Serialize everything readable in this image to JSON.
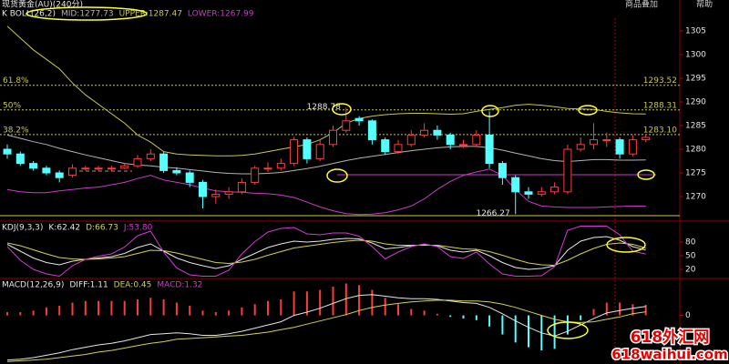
{
  "ui": {
    "title": "现货黄金(AU)(240分)",
    "buttons": [
      "商品叠加",
      "帮助"
    ],
    "watermark": [
      "618外汇网",
      "618waihui.com"
    ]
  },
  "chart_data": [
    {
      "type": "candlestick",
      "title": "K  BOLL(26,2)",
      "open": [
        1280,
        1279,
        1277,
        1276,
        1275,
        1274.5,
        1276,
        1276,
        1276,
        1276,
        1276.5,
        1278,
        1279,
        1275.5,
        1275,
        1273,
        1270,
        1270.5,
        1271,
        1273,
        1276,
        1276,
        1277,
        1282,
        1278,
        1281,
        1284,
        1286.5,
        1286,
        1282,
        1279.5,
        1281,
        1283,
        1284,
        1283,
        1281,
        1281,
        1283,
        1277,
        1274,
        1271,
        1270.5,
        1271,
        1271,
        1280,
        1281,
        1282,
        1282,
        1279,
        1282
      ],
      "high": [
        1281,
        1279.5,
        1277.5,
        1276.5,
        1275.5,
        1276.8,
        1276.5,
        1276.5,
        1276.5,
        1277,
        1278.8,
        1280,
        1279.5,
        1276.2,
        1275.5,
        1273.5,
        1271.5,
        1272,
        1273.8,
        1276.5,
        1277.2,
        1278,
        1282.6,
        1282.5,
        1282,
        1285,
        1288.78,
        1287,
        1286.3,
        1282.5,
        1282,
        1284,
        1285.5,
        1285,
        1283.5,
        1282,
        1284,
        1288,
        1277.5,
        1274.5,
        1272,
        1272,
        1273,
        1281,
        1282.5,
        1285.5,
        1283.5,
        1282.5,
        1283,
        1283.2
      ],
      "low": [
        1278,
        1276.5,
        1275.5,
        1274.5,
        1273,
        1274,
        1275.5,
        1275.5,
        1275.5,
        1275.8,
        1276,
        1277.5,
        1275,
        1274.5,
        1272,
        1267.5,
        1268.5,
        1269.5,
        1270.5,
        1272.5,
        1275.2,
        1275.5,
        1276.5,
        1277,
        1277.5,
        1280.5,
        1283.5,
        1285,
        1281,
        1278.8,
        1279,
        1280.5,
        1282.5,
        1282,
        1280,
        1280.3,
        1280.5,
        1276,
        1272.5,
        1266.27,
        1269.5,
        1270,
        1270.5,
        1270.5,
        1279.5,
        1280,
        1280.5,
        1278,
        1278.5,
        1281.5
      ],
      "close": [
        1279,
        1277,
        1276,
        1275,
        1274,
        1276,
        1276,
        1276,
        1276,
        1276.5,
        1278,
        1279,
        1275.5,
        1275,
        1273,
        1270,
        1270.5,
        1271,
        1273,
        1276,
        1276,
        1277,
        1282,
        1278,
        1281,
        1284,
        1286,
        1286,
        1282,
        1279.5,
        1281,
        1283,
        1284,
        1283,
        1281,
        1281,
        1283,
        1277,
        1274,
        1271,
        1270.5,
        1271,
        1272,
        1280,
        1281,
        1282,
        1282,
        1279,
        1282,
        1282.5
      ],
      "up_color": "#ff3c3c",
      "down_color": "#54ffff",
      "series": [
        {
          "name": "MID:1277.73",
          "color": "#b4b4b4",
          "values": [
            1283,
            1282.3,
            1281.6,
            1281,
            1280.2,
            1279.5,
            1278.8,
            1278.2,
            1277.6,
            1277,
            1276.7,
            1276.5,
            1276.2,
            1276,
            1275.7,
            1275.4,
            1275.1,
            1274.9,
            1274.8,
            1274.8,
            1274.9,
            1275.1,
            1275.5,
            1275.9,
            1276.4,
            1277,
            1277.6,
            1278.1,
            1278.5,
            1278.9,
            1279.3,
            1279.7,
            1280,
            1280.3,
            1280.5,
            1280.6,
            1280.6,
            1280.3,
            1279.8,
            1279.2,
            1278.6,
            1278,
            1277.6,
            1277.4,
            1277.6,
            1277.8,
            1277.8,
            1277.7,
            1277.7,
            1277.73
          ]
        },
        {
          "name": "UPPER:1287.47",
          "color": "#c8c84a",
          "values": [
            1306,
            1303.5,
            1301,
            1299,
            1297,
            1294,
            1291.5,
            1289.5,
            1287.5,
            1285.5,
            1283,
            1281.5,
            1279.5,
            1279,
            1278.8,
            1278.7,
            1278.6,
            1278.6,
            1278.7,
            1279,
            1279.5,
            1280,
            1280.5,
            1281,
            1282,
            1283.5,
            1285.5,
            1286.5,
            1287,
            1287.3,
            1287.5,
            1287.6,
            1287.6,
            1287.5,
            1287.4,
            1287.5,
            1288,
            1288.4,
            1288.8,
            1289.3,
            1289.5,
            1289.3,
            1289,
            1288.6,
            1288.5,
            1288.4,
            1288,
            1287.7,
            1287.5,
            1287.47
          ]
        },
        {
          "name": "LOWER:1267.99",
          "color": "#c83cc8",
          "values": [
            1271.5,
            1271,
            1270.8,
            1270.8,
            1271.2,
            1271.5,
            1271.8,
            1272,
            1272.5,
            1273,
            1273.8,
            1274.5,
            1273.5,
            1273,
            1272.5,
            1271.8,
            1271.2,
            1271,
            1270.9,
            1270.7,
            1270.6,
            1270.3,
            1269.8,
            1268.8,
            1267.8,
            1267,
            1266.4,
            1266.2,
            1266.3,
            1266.6,
            1267.2,
            1268,
            1269.5,
            1271.5,
            1273.2,
            1274.5,
            1275.2,
            1275.8,
            1274.5,
            1271.5,
            1269,
            1268,
            1267.8,
            1267.7,
            1267.7,
            1267.7,
            1267.8,
            1267.9,
            1268,
            1267.99
          ]
        }
      ],
      "levels": [
        {
          "name": "61.8%",
          "value": 1293.52
        },
        {
          "name": "50%",
          "value": 1288.31
        },
        {
          "name": "38.2%",
          "value": 1283.1,
          "label": "1283.10"
        }
      ],
      "annotations": [
        1288.78,
        1266.27
      ],
      "ylim": [
        1265,
        1310
      ],
      "yticks": [
        1270,
        1275,
        1280,
        1285,
        1290,
        1295,
        1300,
        1305
      ]
    },
    {
      "type": "line",
      "title": "KDJ(9,3,3)",
      "series": [
        {
          "name": "K:62.42",
          "color": "#e6e6e6",
          "values": [
            75,
            60,
            45,
            35,
            30,
            38,
            42,
            45,
            48,
            55,
            68,
            76,
            60,
            45,
            35,
            28,
            22,
            28,
            42,
            55,
            68,
            76,
            82,
            80,
            82,
            86,
            88,
            87,
            78,
            65,
            68,
            72,
            74,
            72,
            62,
            58,
            62,
            50,
            35,
            24,
            20,
            22,
            28,
            62,
            82,
            90,
            92,
            84,
            70,
            62.42
          ]
        },
        {
          "name": "D:66.73",
          "color": "#d2d250",
          "values": [
            78,
            72,
            63,
            54,
            46,
            43,
            42,
            43,
            45,
            48,
            55,
            62,
            61,
            56,
            49,
            42,
            35,
            33,
            36,
            42,
            51,
            59,
            67,
            71,
            75,
            79,
            82,
            84,
            82,
            76,
            73,
            73,
            73,
            73,
            69,
            65,
            64,
            59,
            51,
            42,
            34,
            30,
            29,
            40,
            54,
            66,
            75,
            78,
            75,
            66.73
          ]
        },
        {
          "name": "J:53.80",
          "color": "#d23cd2",
          "values": [
            70,
            40,
            20,
            10,
            5,
            28,
            42,
            49,
            54,
            69,
            94,
            104,
            58,
            23,
            8,
            5,
            5,
            18,
            54,
            81,
            102,
            110,
            112,
            98,
            96,
            100,
            100,
            93,
            70,
            43,
            58,
            70,
            76,
            70,
            48,
            44,
            58,
            32,
            10,
            5,
            5,
            6,
            26,
            106,
            115,
            115,
            115,
            96,
            60,
            53.8
          ]
        }
      ],
      "ylim": [
        2,
        122
      ],
      "yticks": [
        20,
        50,
        80
      ]
    },
    {
      "type": "macd",
      "title": "MACD(12,26,9)",
      "series": [
        {
          "name": "DIFF:1.11",
          "color": "#e6e6e6",
          "values": [
            -5.6,
            -5.5,
            -5.3,
            -5,
            -4.7,
            -4.3,
            -4,
            -3.7,
            -3.5,
            -3.2,
            -2.8,
            -2.4,
            -2.3,
            -2.2,
            -2.3,
            -2.5,
            -2.5,
            -2.3,
            -2,
            -1.6,
            -1.2,
            -0.8,
            0,
            0.4,
            0.9,
            1.5,
            2.1,
            2.5,
            2.6,
            2.4,
            2.2,
            2.1,
            2.1,
            2,
            1.8,
            1.6,
            1.5,
            1,
            0.2,
            -0.7,
            -1.5,
            -2.2,
            -2.6,
            -2,
            -1.2,
            -0.4,
            0.3,
            0.6,
            0.9,
            1.11
          ]
        },
        {
          "name": "DEA:0.45",
          "color": "#d2d250",
          "values": [
            -5.8,
            -5.7,
            -5.6,
            -5.5,
            -5.3,
            -5.1,
            -4.9,
            -4.6,
            -4.4,
            -4.1,
            -3.8,
            -3.5,
            -3.3,
            -3,
            -2.9,
            -2.8,
            -2.7,
            -2.6,
            -2.5,
            -2.3,
            -2.1,
            -1.8,
            -1.5,
            -1.1,
            -0.7,
            -0.3,
            0.1,
            0.6,
            1,
            1.3,
            1.5,
            1.7,
            1.8,
            1.9,
            1.9,
            1.8,
            1.8,
            1.7,
            1.4,
            1,
            0.5,
            0,
            -0.5,
            -0.8,
            -0.9,
            -0.8,
            -0.5,
            -0.2,
            0.2,
            0.45
          ]
        },
        {
          "name": "MACD:1.32",
          "color": "#d23cd2",
          "bars": true,
          "up_color": "#ff3c3c",
          "down_color": "#54ffff",
          "values": [
            0.4,
            0.4,
            0.6,
            1,
            1.2,
            1.6,
            1.8,
            1.8,
            1.8,
            1.8,
            2,
            2.2,
            2,
            1.6,
            1.2,
            0.6,
            0.4,
            0.6,
            1,
            1.4,
            1.8,
            2,
            3,
            3,
            3.2,
            3.6,
            4,
            3.8,
            3.2,
            2.2,
            1.4,
            0.8,
            0.6,
            0.2,
            -0.2,
            -0.4,
            -0.6,
            -1.4,
            -2.4,
            -3.4,
            -4,
            -4.4,
            -4.2,
            -2.4,
            -0.6,
            0.8,
            1.6,
            1.6,
            1.4,
            1.32
          ]
        }
      ],
      "ylim": [
        -6.1,
        4.4
      ],
      "yticks": [
        0
      ]
    }
  ]
}
